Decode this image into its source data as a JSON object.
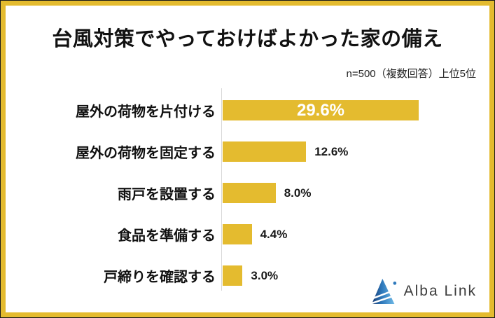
{
  "chart_data": {
    "type": "bar",
    "orientation": "horizontal",
    "title": "台風対策でやっておけばよかった家の備え",
    "note": "n=500（複数回答）上位5位",
    "categories": [
      "屋外の荷物を片付ける",
      "屋外の荷物を固定する",
      "雨戸を設置する",
      "食品を準備する",
      "戸締りを確認する"
    ],
    "values": [
      29.6,
      12.6,
      8.0,
      4.4,
      3.0
    ],
    "display_values": [
      "29.6%",
      "12.6%",
      "8.0%",
      "4.4%",
      "3.0%"
    ],
    "unit": "%",
    "xlim": [
      0,
      30
    ],
    "grid": false,
    "legend": false,
    "bar_color": "#E4BB2F",
    "value_label_inside_color": "#ffffff",
    "value_label_outside_color": "#1a1a1a"
  },
  "frame": {
    "border_color": "#E4BB2F"
  },
  "footer": {
    "logo_text": "Alba Link",
    "logo_colors": {
      "navy": "#17376E",
      "blue": "#2E79BC",
      "light_blue": "#6FB9E6"
    }
  }
}
